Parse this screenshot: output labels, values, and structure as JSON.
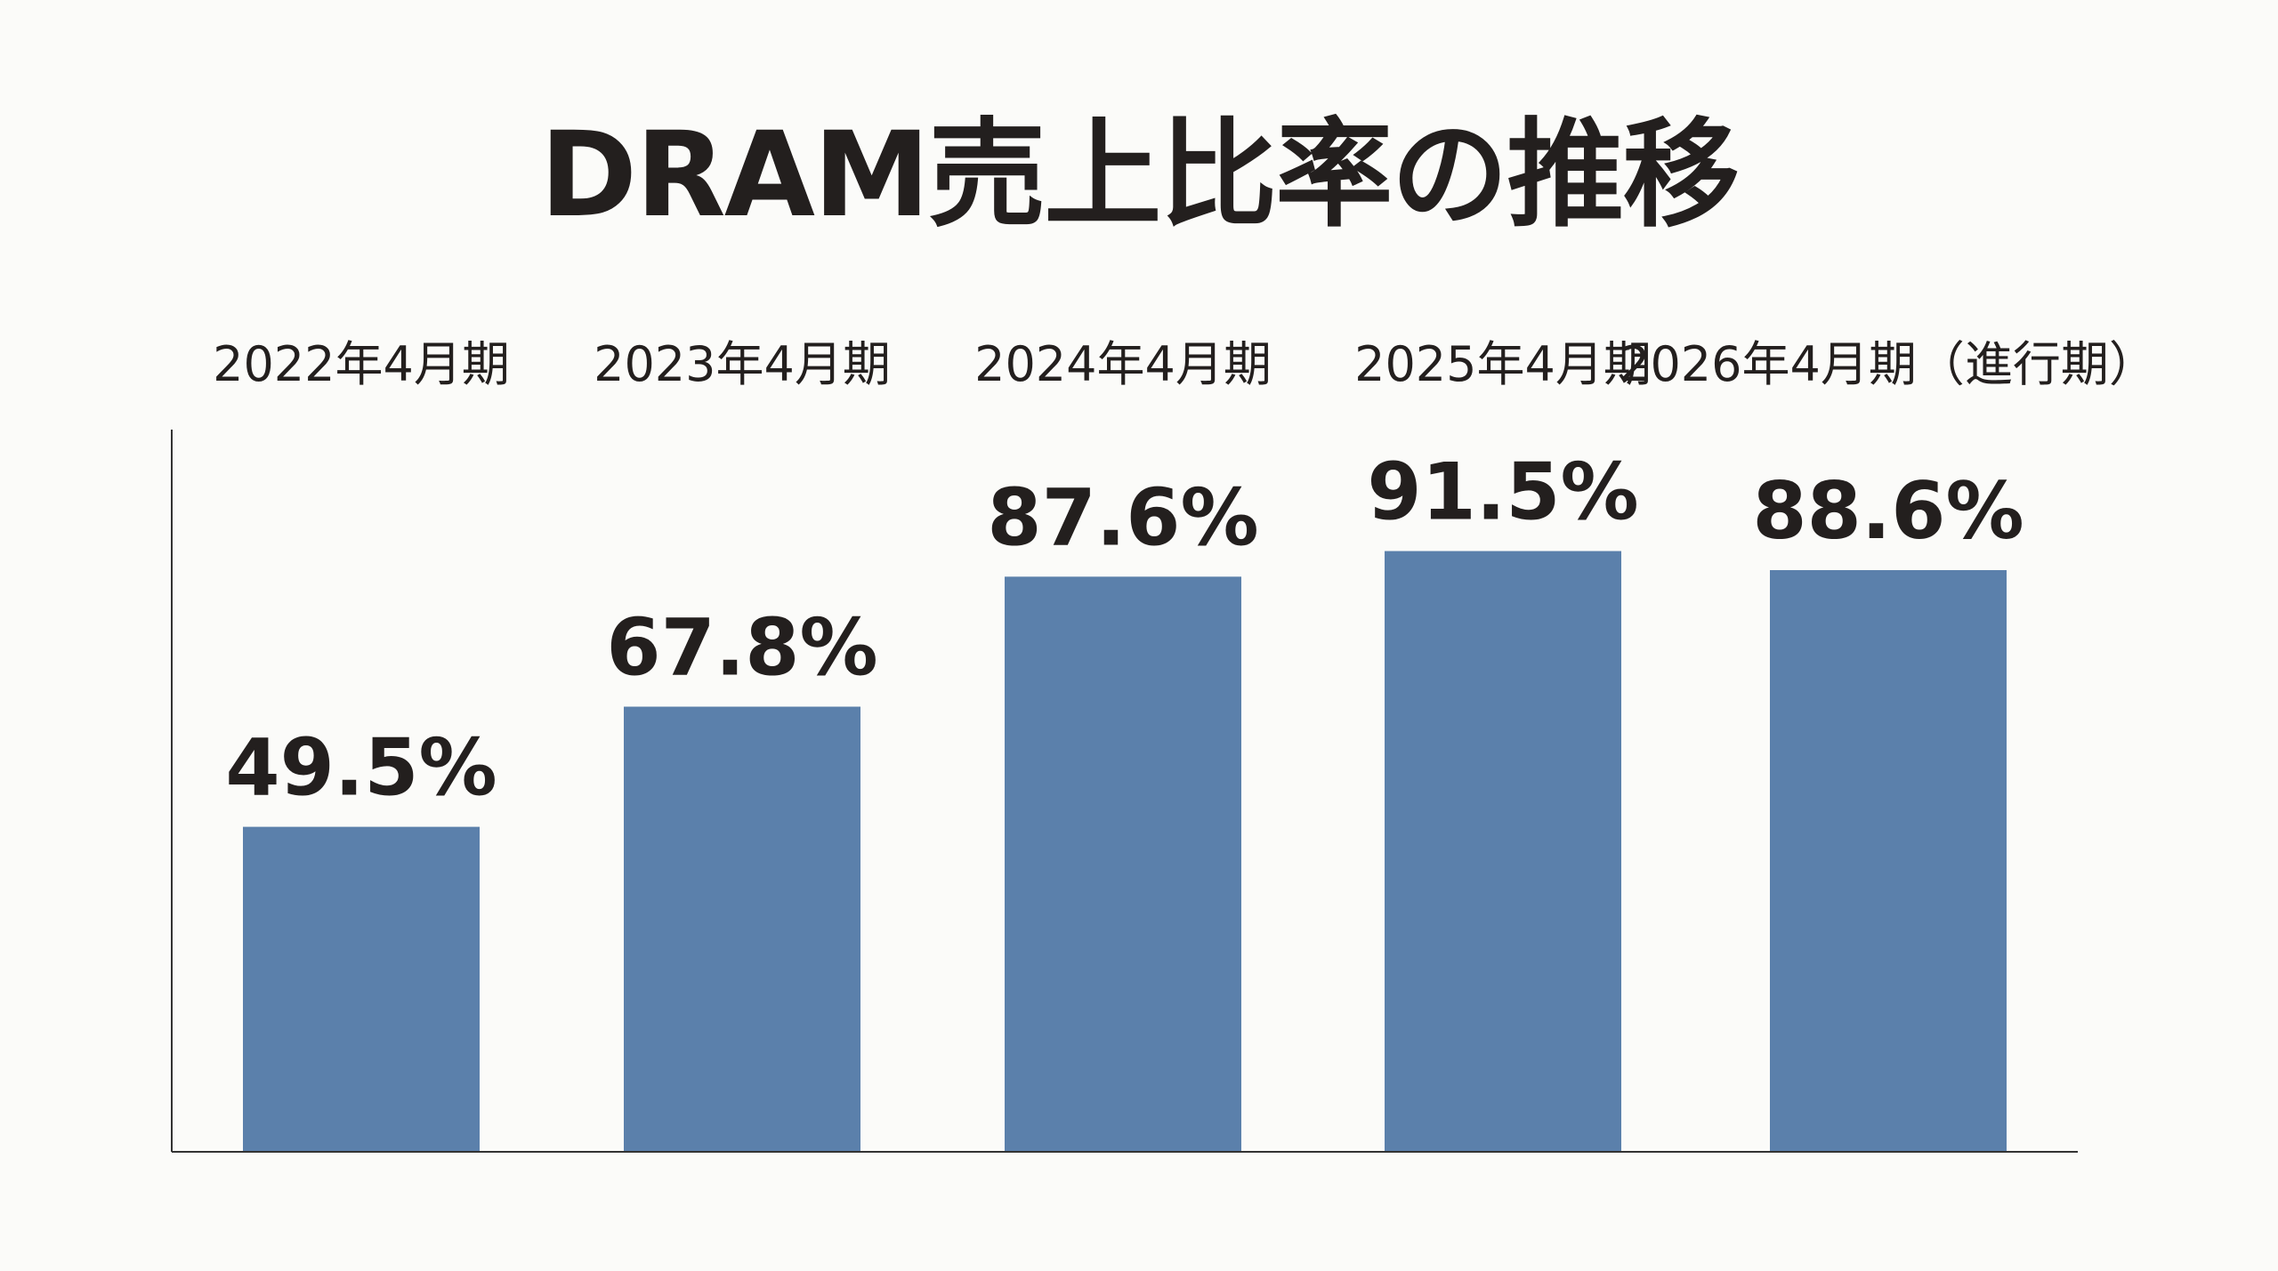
{
  "chart_data": {
    "type": "bar",
    "title": "DRAM売上比率の推移",
    "categories": [
      "2022年4月期",
      "2023年4月期",
      "2024年4月期",
      "2025年4月期",
      "2026年4月期（進行期）"
    ],
    "values": [
      49.5,
      67.8,
      87.6,
      91.5,
      88.6
    ],
    "data_labels": [
      "49.5%",
      "67.8%",
      "87.6%",
      "91.5%",
      "88.6%"
    ],
    "xlabel": "",
    "ylabel": "",
    "ylim": [
      0,
      110
    ],
    "grid": false,
    "legend": "none",
    "category_labels_position": "top",
    "bar_color": "#5b80ab",
    "text_color": "#231f1e",
    "background": "#fbfbf9"
  }
}
